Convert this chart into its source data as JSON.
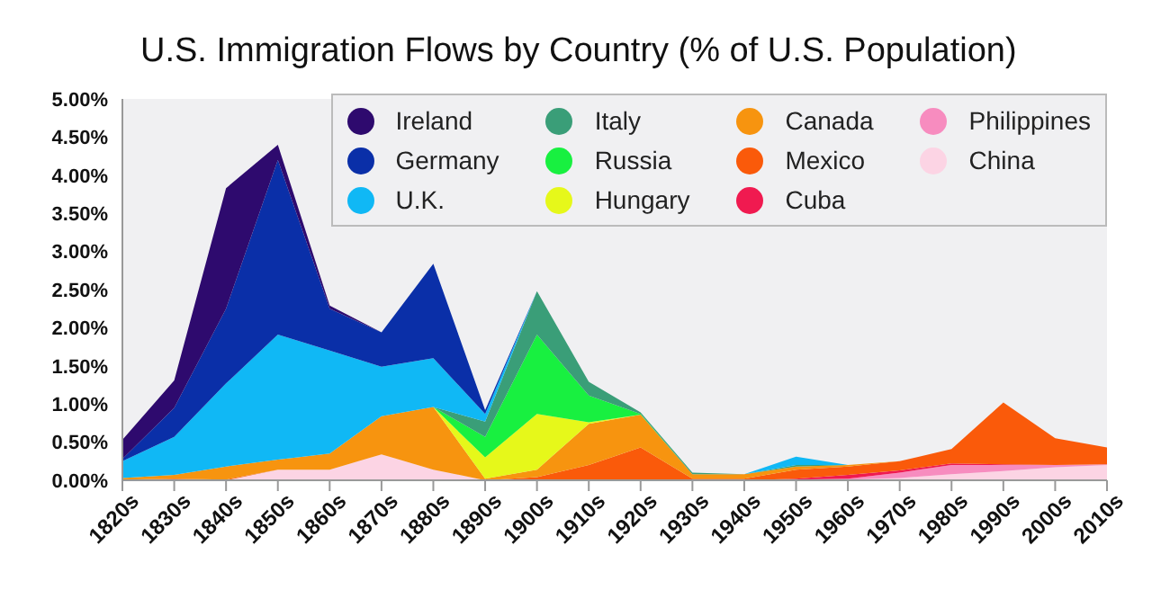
{
  "chart_data": {
    "type": "area",
    "title": "U.S. Immigration Flows by Country (% of U.S. Population)",
    "stacked": true,
    "legend": "top right",
    "categories": [
      "1820s",
      "1830s",
      "1840s",
      "1850s",
      "1860s",
      "1870s",
      "1880s",
      "1890s",
      "1900s",
      "1910s",
      "1920s",
      "1930s",
      "1940s",
      "1950s",
      "1960s",
      "1970s",
      "1980s",
      "1990s",
      "2000s",
      "2010s"
    ],
    "ylim": [
      0,
      5
    ],
    "yticks": [
      {
        "value": 0,
        "label": "0.00%"
      },
      {
        "value": 0.5,
        "label": "0.50%"
      },
      {
        "value": 1,
        "label": "1.00%"
      },
      {
        "value": 1.5,
        "label": "1.50%"
      },
      {
        "value": 2,
        "label": "2.00%"
      },
      {
        "value": 2.5,
        "label": "2.50%"
      },
      {
        "value": 3,
        "label": "3.00%"
      },
      {
        "value": 3.5,
        "label": "3.50%"
      },
      {
        "value": 4,
        "label": "4.00%"
      },
      {
        "value": 4.5,
        "label": "4.50%"
      },
      {
        "value": 5,
        "label": "5.00%"
      }
    ],
    "series": [
      {
        "name": "China",
        "color": "#fcd4e4",
        "values": [
          null,
          null,
          0,
          0.14,
          0.14,
          0.34,
          0.14,
          0,
          null,
          null,
          null,
          null,
          0,
          0.01,
          0.01,
          0.03,
          0.08,
          0.12,
          0.17,
          0.2
        ]
      },
      {
        "name": "Philippines",
        "color": "#f78cbf",
        "values": [
          null,
          null,
          null,
          null,
          null,
          null,
          null,
          null,
          null,
          null,
          null,
          null,
          null,
          0,
          0.01,
          0.07,
          0.12,
          0.08,
          0.03,
          0.01
        ]
      },
      {
        "name": "Cuba",
        "color": "#f01a50",
        "values": [
          null,
          null,
          null,
          null,
          null,
          null,
          null,
          null,
          null,
          null,
          null,
          null,
          0,
          0.01,
          0.05,
          0.03,
          0.02,
          0.01,
          0,
          null
        ]
      },
      {
        "name": "Mexico",
        "color": "#fa5a0a",
        "values": [
          0.01,
          0.02,
          0.01,
          0,
          null,
          null,
          null,
          0,
          0.04,
          0.2,
          0.43,
          0.02,
          0.02,
          0.12,
          0.11,
          0.12,
          0.19,
          0.81,
          0.35,
          0.22
        ]
      },
      {
        "name": "Canada",
        "color": "#f7940f",
        "values": [
          0.02,
          0.05,
          0.17,
          0.13,
          0.21,
          0.5,
          0.82,
          0.02,
          0.1,
          0.54,
          0.43,
          0.06,
          0.06,
          0.04,
          0.02,
          0,
          null,
          null,
          null,
          null
        ]
      },
      {
        "name": "Hungary",
        "color": "#e6f81a",
        "values": [
          null,
          null,
          null,
          null,
          null,
          null,
          0,
          0.28,
          0.73,
          0.02,
          0,
          null,
          null,
          null,
          null,
          null,
          null,
          null,
          null,
          null
        ]
      },
      {
        "name": "Russia",
        "color": "#18f040",
        "values": [
          null,
          null,
          null,
          null,
          null,
          null,
          0,
          0.27,
          1.04,
          0.35,
          0.01,
          0,
          null,
          null,
          null,
          null,
          null,
          null,
          null,
          null
        ]
      },
      {
        "name": "Italy",
        "color": "#3a9e78",
        "values": [
          null,
          null,
          null,
          null,
          null,
          null,
          0,
          0.2,
          0.57,
          0.18,
          0.02,
          0.02,
          0,
          0.02,
          0,
          null,
          null,
          null,
          null,
          null
        ]
      },
      {
        "name": "U.K.",
        "color": "#10b8f5",
        "values": [
          0.22,
          0.5,
          1.09,
          1.64,
          1.35,
          0.65,
          0.64,
          0.1,
          0,
          null,
          null,
          null,
          0,
          0.11,
          0,
          null,
          null,
          null,
          null,
          null
        ]
      },
      {
        "name": "Germany",
        "color": "#0a2fa8",
        "values": [
          0.03,
          0.38,
          0.98,
          2.29,
          0.55,
          0.45,
          1.24,
          0.05,
          0,
          null,
          null,
          null,
          null,
          null,
          null,
          null,
          null,
          null,
          null,
          null
        ]
      },
      {
        "name": "Ireland",
        "color": "#2e0a6e",
        "values": [
          0.25,
          0.36,
          1.58,
          0.2,
          0.04,
          0,
          null,
          null,
          null,
          null,
          null,
          null,
          null,
          null,
          null,
          null,
          null,
          null,
          null,
          null
        ]
      }
    ]
  }
}
